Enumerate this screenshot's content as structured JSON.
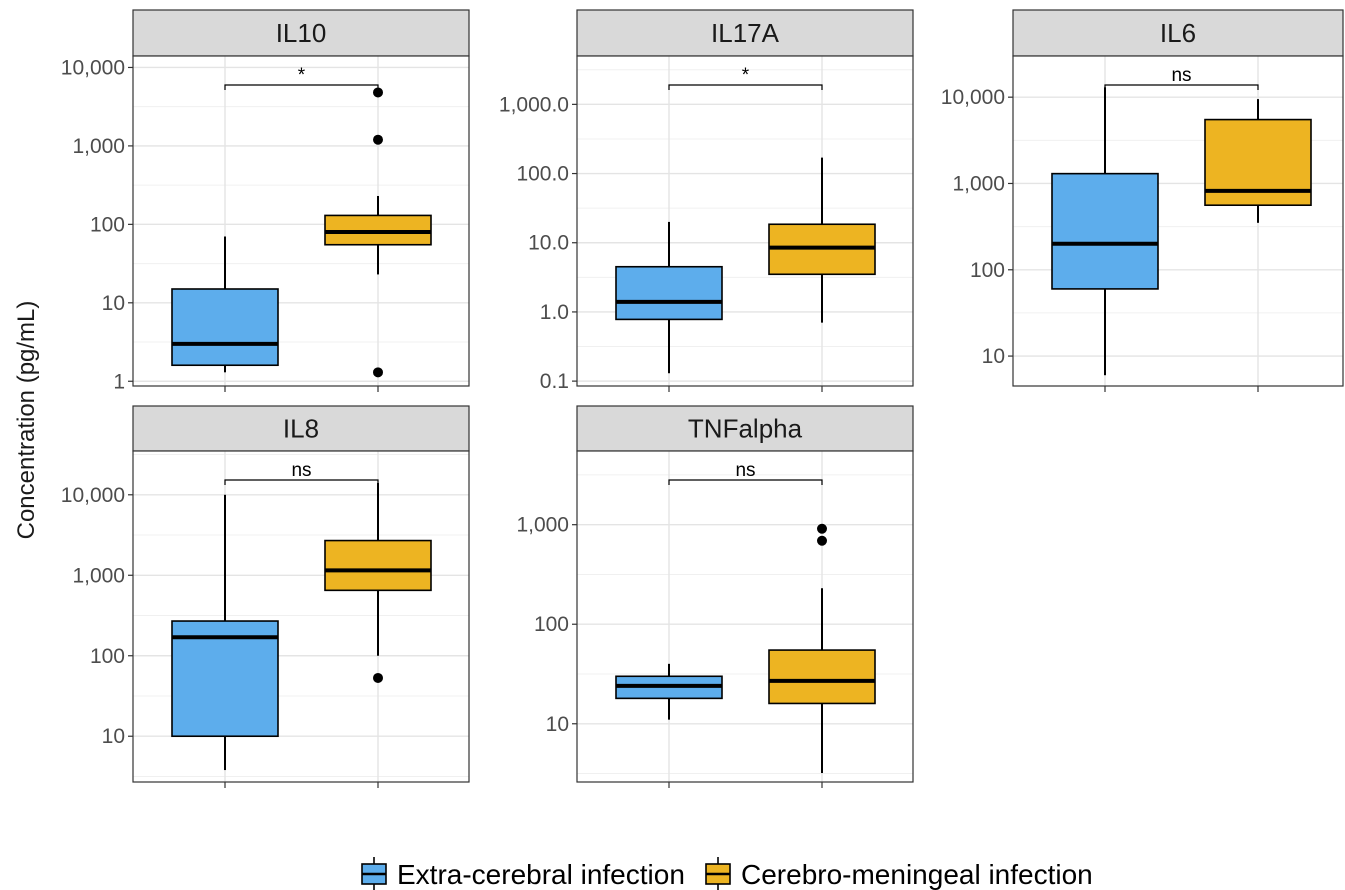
{
  "chart_data": {
    "type": "box",
    "ylabel": "Concentration (pg/mL)",
    "scale": "log10",
    "grid": true,
    "legend_position": "bottom",
    "colors": {
      "Extra-cerebral infection": "#5DADEC",
      "Cerebro-meningeal infection": "#EDB422"
    },
    "legend": [
      {
        "label": "Extra-cerebral infection",
        "color": "#5DADEC"
      },
      {
        "label": "Cerebro-meningeal infection",
        "color": "#EDB422"
      }
    ],
    "panels": [
      {
        "title": "IL10",
        "significance": "*",
        "yrange": [
          0.87,
          14000
        ],
        "ticks": [
          1,
          10,
          100,
          1000,
          10000
        ],
        "tick_labels": [
          "1",
          "10",
          "100",
          "1,000",
          "10,000"
        ],
        "groups": [
          {
            "name": "Extra-cerebral infection",
            "whisker_low": 1.3,
            "q1": 1.6,
            "median": 3.0,
            "q3": 15,
            "whisker_high": 70,
            "outliers": []
          },
          {
            "name": "Cerebro-meningeal infection",
            "whisker_low": 23,
            "q1": 55,
            "median": 80,
            "q3": 130,
            "whisker_high": 230,
            "outliers": [
              1.3,
              1200,
              4800
            ]
          }
        ]
      },
      {
        "title": "IL17A",
        "significance": "*",
        "yrange": [
          0.085,
          5000
        ],
        "ticks": [
          0.1,
          1,
          10,
          100,
          1000
        ],
        "tick_labels": [
          "0.1",
          "1.0",
          "10.0",
          "100.0",
          "1,000.0"
        ],
        "groups": [
          {
            "name": "Extra-cerebral infection",
            "whisker_low": 0.13,
            "q1": 0.78,
            "median": 1.4,
            "q3": 4.5,
            "whisker_high": 20,
            "outliers": []
          },
          {
            "name": "Cerebro-meningeal infection",
            "whisker_low": 0.7,
            "q1": 3.5,
            "median": 8.5,
            "q3": 18.5,
            "whisker_high": 170,
            "outliers": []
          }
        ]
      },
      {
        "title": "IL6",
        "significance": "ns",
        "yrange": [
          4.5,
          30000
        ],
        "ticks": [
          10,
          100,
          1000,
          10000
        ],
        "tick_labels": [
          "10",
          "100",
          "1,000",
          "10,000"
        ],
        "groups": [
          {
            "name": "Extra-cerebral infection",
            "whisker_low": 6,
            "q1": 60,
            "median": 200,
            "q3": 1300,
            "whisker_high": 13000,
            "outliers": []
          },
          {
            "name": "Cerebro-meningeal infection",
            "whisker_low": 350,
            "q1": 560,
            "median": 820,
            "q3": 5500,
            "whisker_high": 9500,
            "outliers": []
          }
        ]
      },
      {
        "title": "IL8",
        "significance": "ns",
        "yrange": [
          2.7,
          35000
        ],
        "ticks": [
          10,
          100,
          1000,
          10000
        ],
        "tick_labels": [
          "10",
          "100",
          "1,000",
          "10,000"
        ],
        "groups": [
          {
            "name": "Extra-cerebral infection",
            "whisker_low": 3.8,
            "q1": 10,
            "median": 170,
            "q3": 270,
            "whisker_high": 10000,
            "outliers": []
          },
          {
            "name": "Cerebro-meningeal infection",
            "whisker_low": 100,
            "q1": 650,
            "median": 1150,
            "q3": 2700,
            "whisker_high": 14000,
            "outliers": [
              53
            ]
          }
        ]
      },
      {
        "title": "TNFalpha",
        "significance": "ns",
        "yrange": [
          2.6,
          5500
        ],
        "ticks": [
          10,
          100,
          1000
        ],
        "tick_labels": [
          "10",
          "100",
          "1,000"
        ],
        "groups": [
          {
            "name": "Extra-cerebral infection",
            "whisker_low": 11,
            "q1": 18,
            "median": 24,
            "q3": 30,
            "whisker_high": 40,
            "outliers": []
          },
          {
            "name": "Cerebro-meningeal infection",
            "whisker_low": 3.2,
            "q1": 16,
            "median": 27,
            "q3": 55,
            "whisker_high": 230,
            "outliers": [
              690,
              910
            ]
          }
        ]
      }
    ]
  }
}
